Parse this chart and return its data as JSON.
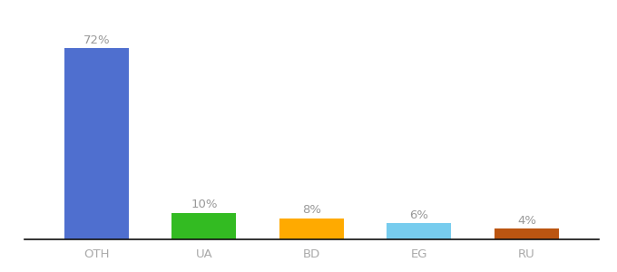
{
  "categories": [
    "OTH",
    "UA",
    "BD",
    "EG",
    "RU"
  ],
  "values": [
    72,
    10,
    8,
    6,
    4
  ],
  "labels": [
    "72%",
    "10%",
    "8%",
    "6%",
    "4%"
  ],
  "bar_colors": [
    "#4f6fcf",
    "#33bb22",
    "#ffaa00",
    "#77ccee",
    "#bb5511"
  ],
  "background_color": "#ffffff",
  "label_color": "#999999",
  "label_fontsize": 9.5,
  "tick_fontsize": 9.5,
  "tick_color": "#aaaaaa",
  "ylim": [
    0,
    82
  ],
  "bar_width": 0.6
}
